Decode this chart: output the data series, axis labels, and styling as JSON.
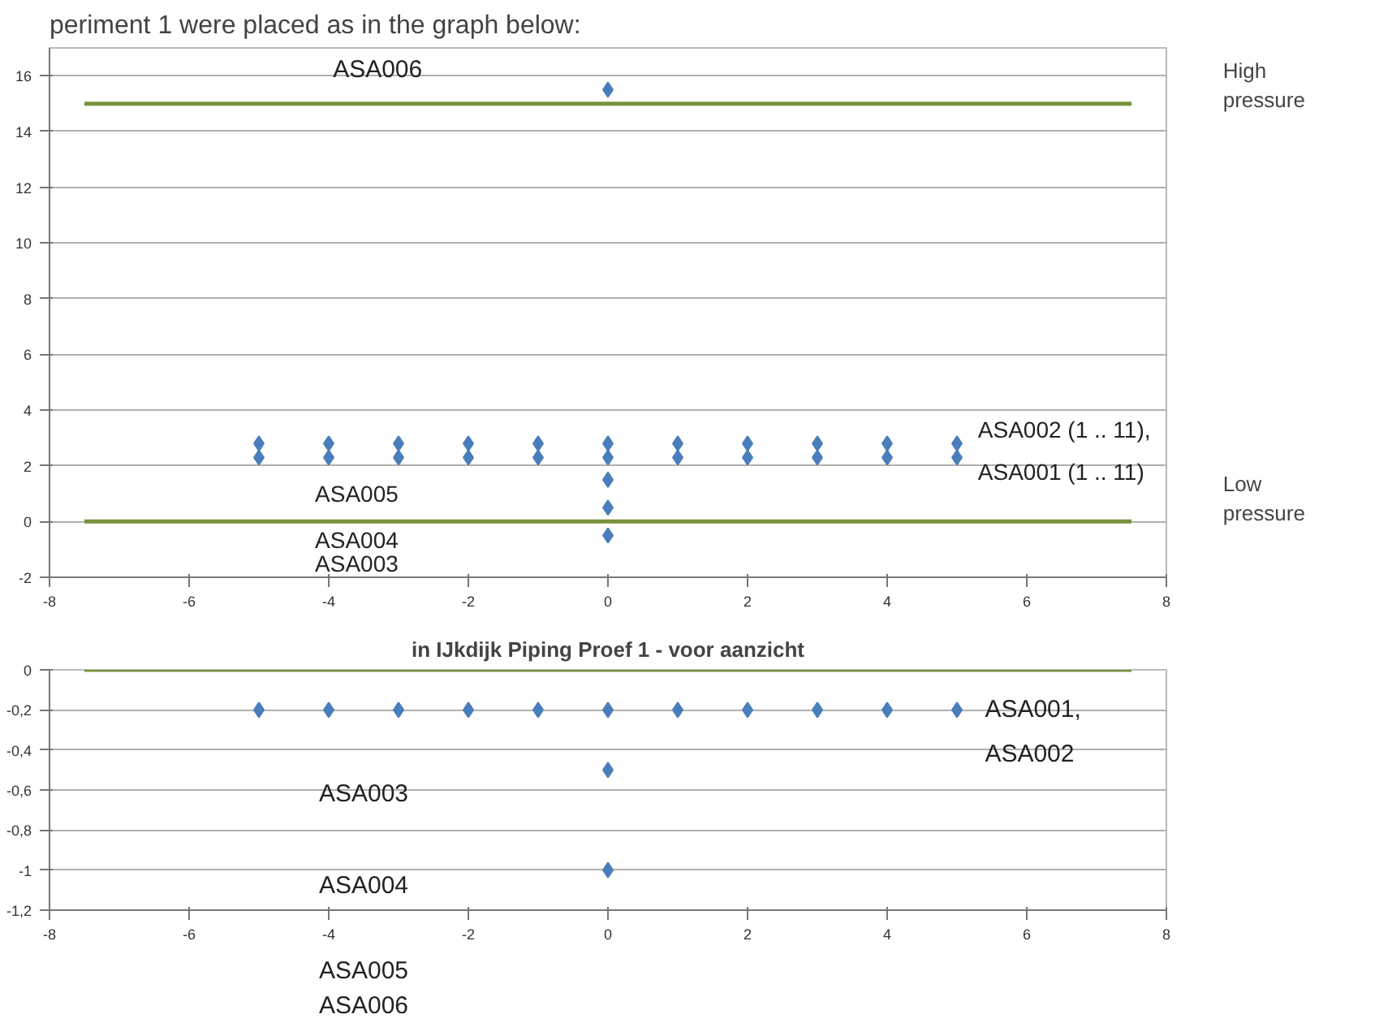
{
  "chart_data": [
    {
      "type": "scatter",
      "grid": "y",
      "xlim": [
        -8,
        8
      ],
      "xticks": [
        -8,
        -6,
        -4,
        -2,
        0,
        2,
        4,
        6,
        8
      ],
      "ylim": [
        -2,
        17
      ],
      "yticks": [
        -2,
        0,
        2,
        4,
        6,
        8,
        10,
        12,
        14,
        16
      ],
      "series": [
        {
          "color": "#4a7ebb",
          "marker": "diamond",
          "x": [
            -5,
            -4,
            -3,
            -2,
            -1,
            0,
            1,
            2,
            3,
            4,
            5
          ],
          "values": [
            2.8,
            2.8,
            2.8,
            2.8,
            2.8,
            2.8,
            2.8,
            2.8,
            2.8,
            2.8,
            2.8
          ]
        },
        {
          "color": "#4a7ebb",
          "marker": "diamond",
          "x": [
            -5,
            -4,
            -3,
            -2,
            -1,
            0,
            1,
            2,
            3,
            4,
            5
          ],
          "values": [
            2.3,
            2.3,
            2.3,
            2.3,
            2.3,
            2.3,
            2.3,
            2.3,
            2.3,
            2.3,
            2.3
          ]
        },
        {
          "color": "#4a7ebb",
          "marker": "diamond",
          "x": [
            0,
            0,
            0,
            0
          ],
          "values": [
            15.5,
            1.5,
            0.5,
            -0.5
          ]
        },
        {
          "type": "line",
          "color": "#77933c",
          "x": [
            -7.5,
            7.5
          ],
          "values": [
            15,
            15
          ]
        },
        {
          "type": "line",
          "color": "#77933c",
          "x": [
            -7.5,
            7.5
          ],
          "values": [
            0,
            0
          ]
        }
      ],
      "annotations": [
        "periment 1 were placed as in the graph below:",
        "ASA006",
        "ASA005",
        "ASA004",
        "ASA003",
        "ASA002 (1 .. 11),",
        "ASA001 (1 .. 11)",
        "High pressure",
        "Low pressure"
      ]
    },
    {
      "type": "scatter",
      "grid": "y",
      "title": "in IJkdijk Piping Proef 1 - voor aanzicht",
      "xlim": [
        -8,
        8
      ],
      "xticks": [
        -8,
        -6,
        -4,
        -2,
        0,
        2,
        4,
        6,
        8
      ],
      "ylim": [
        -1.2,
        0
      ],
      "yticks": [
        0,
        {
          "value": -0.2,
          "label": "-0,2"
        },
        {
          "value": -0.4,
          "label": "-0,4"
        },
        {
          "value": -0.6,
          "label": "-0,6"
        },
        {
          "value": -0.8,
          "label": "-0,8"
        },
        -1,
        {
          "value": -1.2,
          "label": "-1,2"
        }
      ],
      "series": [
        {
          "color": "#4a7ebb",
          "marker": "diamond",
          "x": [
            -5,
            -4,
            -3,
            -2,
            -1,
            0,
            1,
            2,
            3,
            4,
            5
          ],
          "values": [
            -0.2,
            -0.2,
            -0.2,
            -0.2,
            -0.2,
            -0.2,
            -0.2,
            -0.2,
            -0.2,
            -0.2,
            -0.2
          ]
        },
        {
          "color": "#4a7ebb",
          "marker": "diamond",
          "x": [
            0,
            0
          ],
          "values": [
            -0.5,
            -1
          ]
        },
        {
          "type": "line",
          "color": "#77933c",
          "x": [
            -7.5,
            7.5
          ],
          "values": [
            0,
            0
          ]
        }
      ],
      "annotations": [
        "ASA001,",
        "ASA002",
        "ASA003",
        "ASA004",
        "ASA005",
        "ASA006"
      ]
    }
  ]
}
